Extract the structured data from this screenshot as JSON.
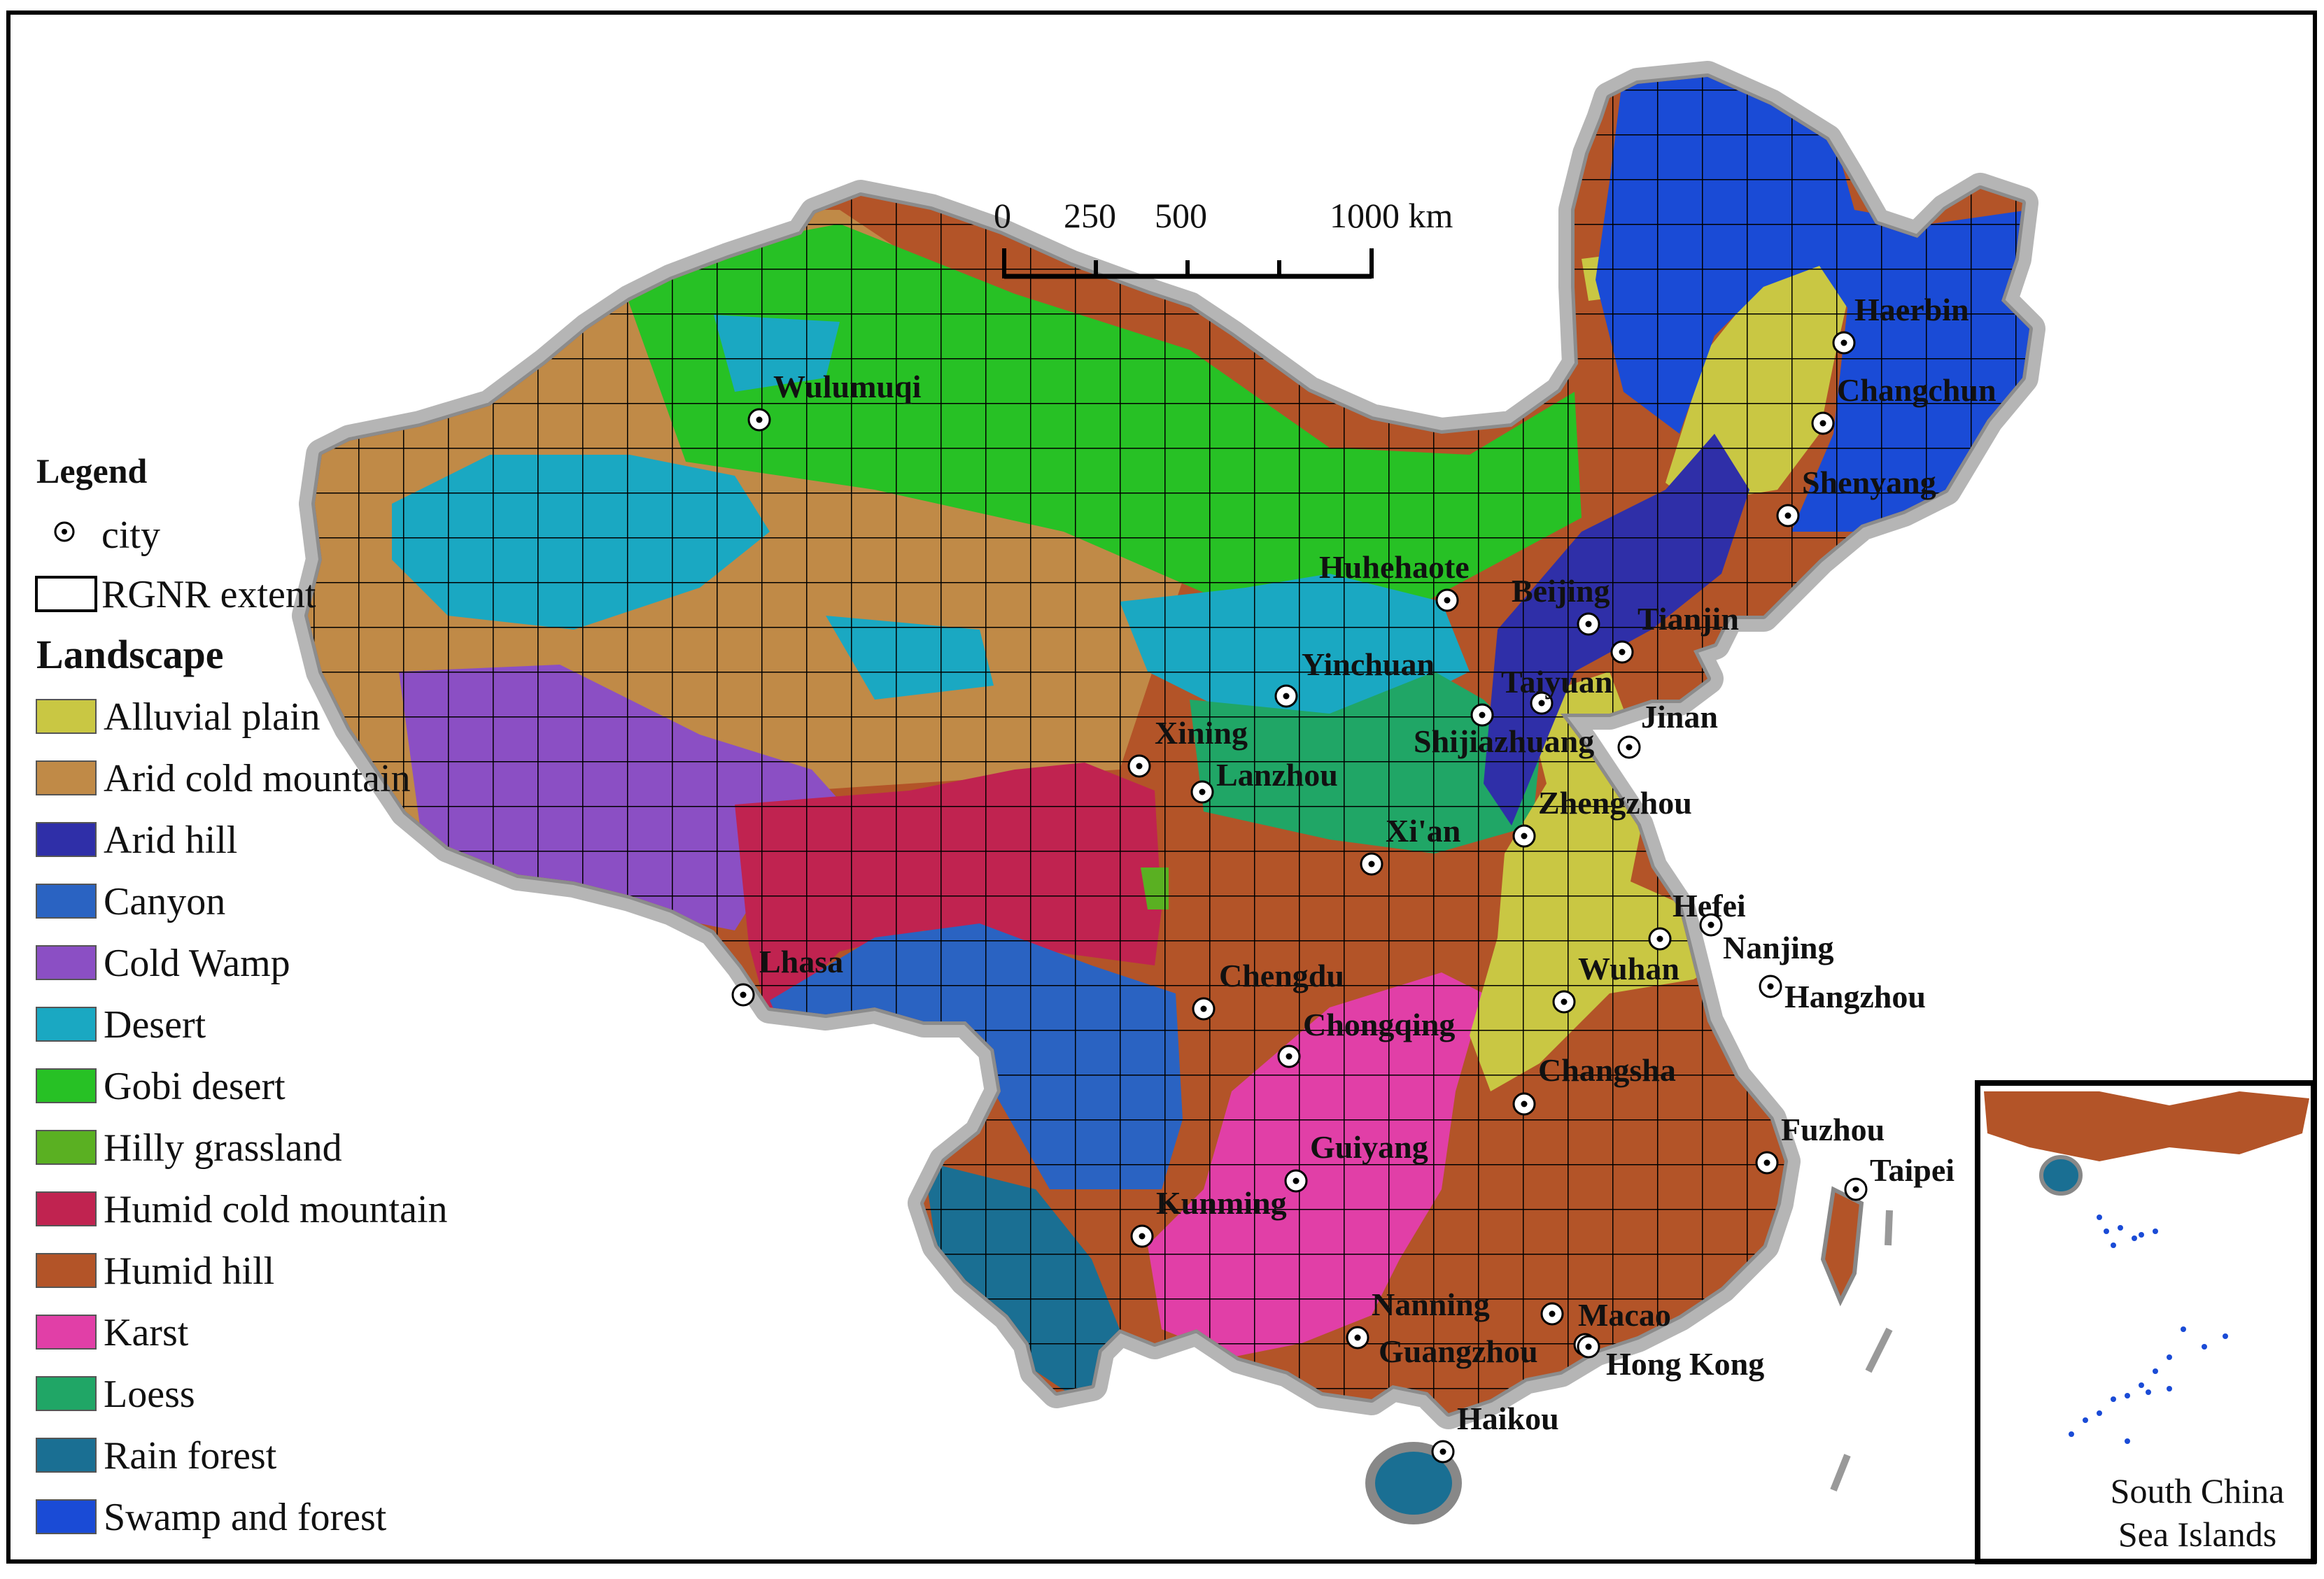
{
  "legend": {
    "title": "Legend",
    "city_label": "city",
    "extent_label": "RGNR extent",
    "landscape_title": "Landscape",
    "landscape_classes": [
      {
        "label": "Alluvial plain",
        "color": "#c9c743"
      },
      {
        "label": "Arid cold mountain",
        "color": "#c08a47"
      },
      {
        "label": "Arid hill",
        "color": "#2f2fa8"
      },
      {
        "label": "Canyon",
        "color": "#2a63c2"
      },
      {
        "label": "Cold Wamp",
        "color": "#8b4fc4"
      },
      {
        "label": "Desert",
        "color": "#1aa8c2"
      },
      {
        "label": "Gobi desert",
        "color": "#27c125"
      },
      {
        "label": "Hilly grassland",
        "color": "#5ab022"
      },
      {
        "label": "Humid cold mountain",
        "color": "#c02350"
      },
      {
        "label": "Humid hill",
        "color": "#b35428"
      },
      {
        "label": "Karst",
        "color": "#e13fa7"
      },
      {
        "label": "Loess",
        "color": "#20a666"
      },
      {
        "label": "Rain forest",
        "color": "#1a6f93"
      },
      {
        "label": "Swamp and forest",
        "color": "#1a4bd6"
      }
    ]
  },
  "scale_bar": {
    "labels": [
      "0",
      "250",
      "500",
      "1000 km"
    ]
  },
  "cities": [
    {
      "name": "Wulumuqi"
    },
    {
      "name": "Haerbin"
    },
    {
      "name": "Changchun"
    },
    {
      "name": "Shenyang"
    },
    {
      "name": "Huhehaote"
    },
    {
      "name": "Beijing"
    },
    {
      "name": "Tianjin"
    },
    {
      "name": "Yinchuan"
    },
    {
      "name": "Taiyuan"
    },
    {
      "name": "Shijiazhuang"
    },
    {
      "name": "Jinan"
    },
    {
      "name": "Xining"
    },
    {
      "name": "Lanzhou"
    },
    {
      "name": "Zhengzhou"
    },
    {
      "name": "Xi'an"
    },
    {
      "name": "Hefei"
    },
    {
      "name": "Nanjing"
    },
    {
      "name": "Lhasa"
    },
    {
      "name": "Chengdu"
    },
    {
      "name": "Wuhan"
    },
    {
      "name": "Hangzhou"
    },
    {
      "name": "Chongqing"
    },
    {
      "name": "Changsha"
    },
    {
      "name": "Fuzhou"
    },
    {
      "name": "Taipei"
    },
    {
      "name": "Guiyang"
    },
    {
      "name": "Kunming"
    },
    {
      "name": "Nanning"
    },
    {
      "name": "Macao"
    },
    {
      "name": "Guangzhou"
    },
    {
      "name": "Hong Kong"
    },
    {
      "name": "Haikou"
    }
  ],
  "inset": {
    "label_line1": "South China",
    "label_line2": "Sea Islands"
  },
  "colors": {
    "buffer": "#a9a9a9",
    "grid_line": "#000000",
    "frame": "#000000"
  }
}
